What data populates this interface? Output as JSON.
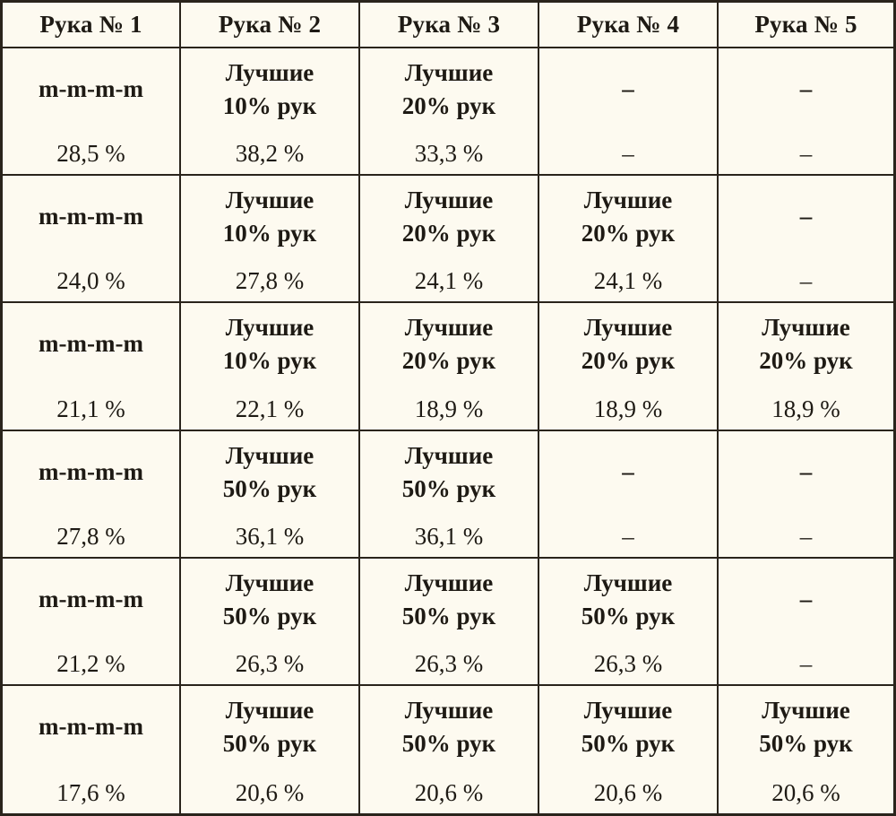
{
  "headers": [
    "Рука № 1",
    "Рука № 2",
    "Рука № 3",
    "Рука № 4",
    "Рука № 5"
  ],
  "rows": [
    {
      "cells": [
        {
          "lines": [
            "m-m-m-m"
          ],
          "value": "28,5 %"
        },
        {
          "lines": [
            "Лучшие",
            "10% рук"
          ],
          "value": "38,2 %"
        },
        {
          "lines": [
            "Лучшие",
            "20% рук"
          ],
          "value": "33,3 %"
        },
        {
          "lines": [
            "–"
          ],
          "value": "–"
        },
        {
          "lines": [
            "–"
          ],
          "value": "–"
        }
      ]
    },
    {
      "cells": [
        {
          "lines": [
            "m-m-m-m"
          ],
          "value": "24,0 %"
        },
        {
          "lines": [
            "Лучшие",
            "10% рук"
          ],
          "value": "27,8 %"
        },
        {
          "lines": [
            "Лучшие",
            "20% рук"
          ],
          "value": "24,1 %"
        },
        {
          "lines": [
            "Лучшие",
            "20% рук"
          ],
          "value": "24,1 %"
        },
        {
          "lines": [
            "–"
          ],
          "value": "–"
        }
      ]
    },
    {
      "cells": [
        {
          "lines": [
            "m-m-m-m"
          ],
          "value": "21,1 %"
        },
        {
          "lines": [
            "Лучшие",
            "10% рук"
          ],
          "value": "22,1 %"
        },
        {
          "lines": [
            "Лучшие",
            "20% рук"
          ],
          "value": "18,9 %"
        },
        {
          "lines": [
            "Лучшие",
            "20% рук"
          ],
          "value": "18,9 %"
        },
        {
          "lines": [
            "Лучшие",
            "20% рук"
          ],
          "value": "18,9 %"
        }
      ]
    },
    {
      "cells": [
        {
          "lines": [
            "m-m-m-m"
          ],
          "value": "27,8 %"
        },
        {
          "lines": [
            "Лучшие",
            "50% рук"
          ],
          "value": "36,1 %"
        },
        {
          "lines": [
            "Лучшие",
            "50% рук"
          ],
          "value": "36,1 %"
        },
        {
          "lines": [
            "–"
          ],
          "value": "–"
        },
        {
          "lines": [
            "–"
          ],
          "value": "–"
        }
      ]
    },
    {
      "cells": [
        {
          "lines": [
            "m-m-m-m"
          ],
          "value": "21,2 %"
        },
        {
          "lines": [
            "Лучшие",
            "50% рук"
          ],
          "value": "26,3 %"
        },
        {
          "lines": [
            "Лучшие",
            "50% рук"
          ],
          "value": "26,3 %"
        },
        {
          "lines": [
            "Лучшие",
            "50% рук"
          ],
          "value": "26,3 %"
        },
        {
          "lines": [
            "–"
          ],
          "value": "–"
        }
      ]
    },
    {
      "cells": [
        {
          "lines": [
            "m-m-m-m"
          ],
          "value": "17,6 %"
        },
        {
          "lines": [
            "Лучшие",
            "50% рук"
          ],
          "value": "20,6 %"
        },
        {
          "lines": [
            "Лучшие",
            "50% рук"
          ],
          "value": "20,6 %"
        },
        {
          "lines": [
            "Лучшие",
            "50% рук"
          ],
          "value": "20,6 %"
        },
        {
          "lines": [
            "Лучшие",
            "50% рук"
          ],
          "value": "20,6 %"
        }
      ]
    }
  ]
}
